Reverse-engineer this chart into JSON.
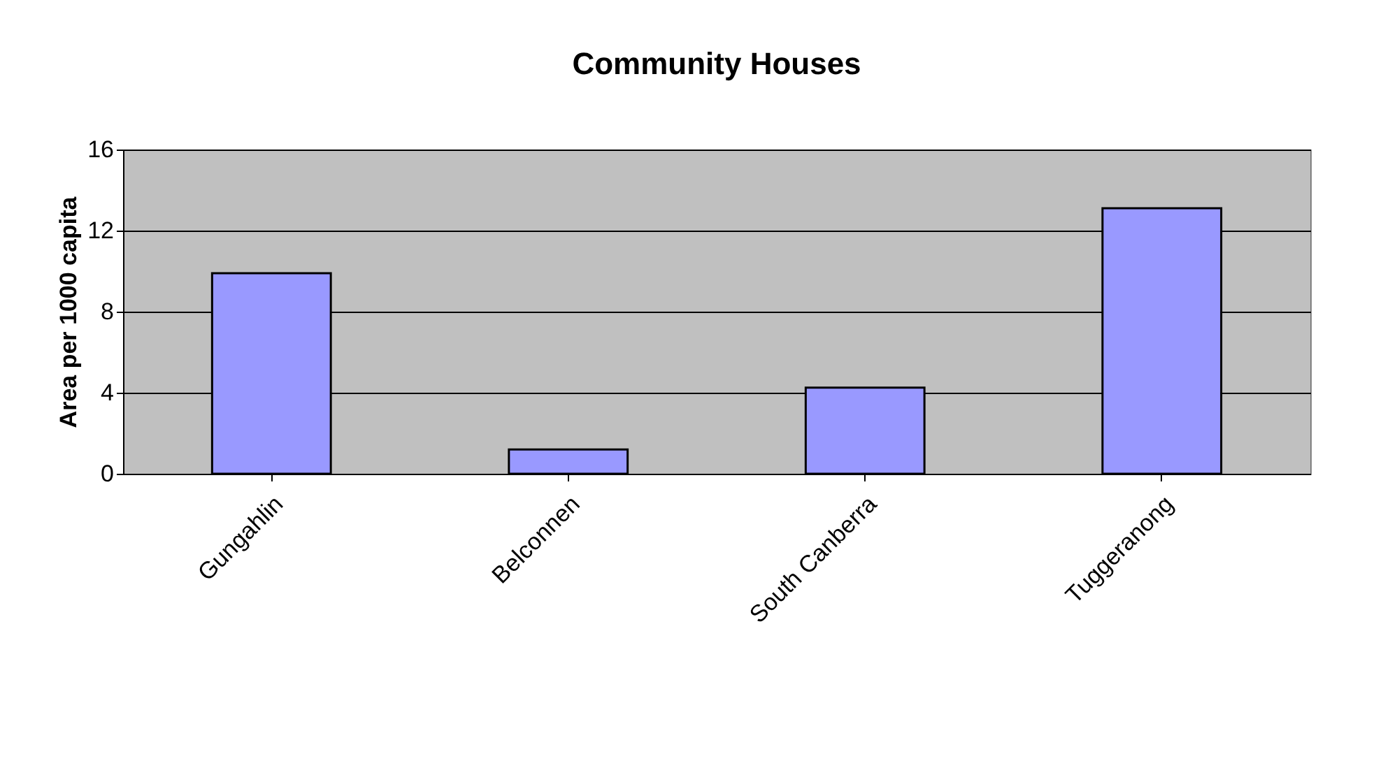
{
  "chart_data": {
    "type": "bar",
    "title": "Community Houses",
    "ylabel": "Area per 1000 capita",
    "categories": [
      "Gungahlin",
      "Belconnen",
      "South Canberra",
      "Tuggeranong"
    ],
    "values": [
      9.9,
      1.2,
      4.25,
      13.1
    ],
    "color": "#9999ff",
    "ylim": [
      0,
      16
    ],
    "yticks": [
      0,
      4,
      8,
      12,
      16
    ],
    "grid": "y"
  }
}
